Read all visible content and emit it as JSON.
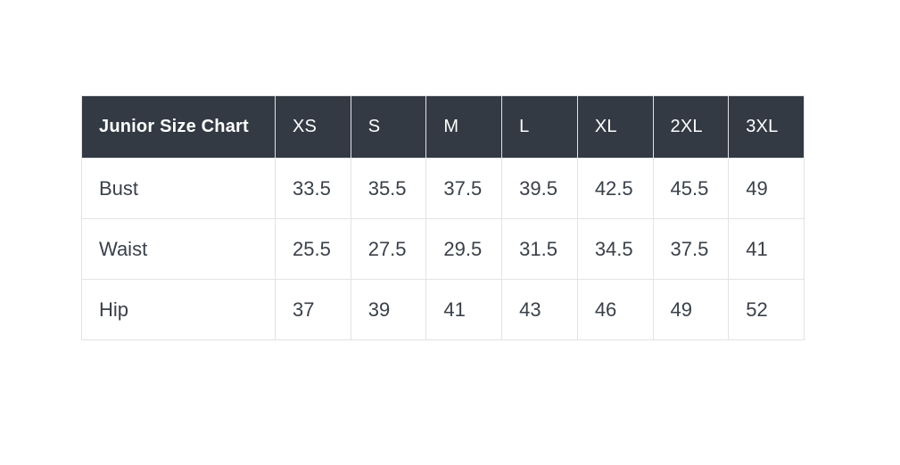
{
  "page": {
    "background": "#ffffff"
  },
  "colors": {
    "header_bg": "#333a44",
    "header_text": "#ffffff",
    "body_text": "#3a4049",
    "border": "#e2e3e5",
    "row_bg": "#ffffff"
  },
  "chart_data": {
    "type": "table",
    "title": "Junior Size Chart",
    "columns": [
      "Junior Size Chart",
      "XS",
      "S",
      "M",
      "L",
      "XL",
      "2XL",
      "3XL"
    ],
    "rows": [
      {
        "label": "Bust",
        "values": [
          33.5,
          35.5,
          37.5,
          39.5,
          42.5,
          45.5,
          49
        ]
      },
      {
        "label": "Waist",
        "values": [
          25.5,
          27.5,
          29.5,
          31.5,
          34.5,
          37.5,
          41
        ]
      },
      {
        "label": "Hip",
        "values": [
          37,
          39,
          41,
          43,
          46,
          49,
          52
        ]
      }
    ]
  }
}
